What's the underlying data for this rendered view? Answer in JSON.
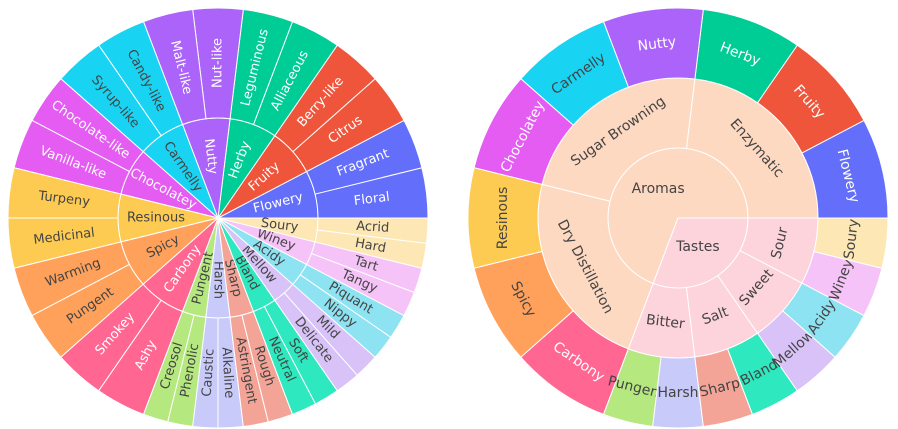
{
  "chart_data": [
    {
      "type": "sunburst",
      "children": [
        {
          "name": "Flowery",
          "color": "#636efa",
          "children": [
            {
              "name": "Floral",
              "value": 2
            },
            {
              "name": "Fragrant",
              "value": 2
            }
          ]
        },
        {
          "name": "Fruity",
          "color": "#ef553b",
          "children": [
            {
              "name": "Citrus",
              "value": 2
            },
            {
              "name": "Berry-like",
              "value": 2
            }
          ]
        },
        {
          "name": "Herby",
          "color": "#00cc96",
          "children": [
            {
              "name": "Alliaceous",
              "value": 2
            },
            {
              "name": "Leguminous",
              "value": 2
            }
          ]
        },
        {
          "name": "Nutty",
          "color": "#ab63fa",
          "children": [
            {
              "name": "Nut-like",
              "value": 2
            },
            {
              "name": "Malt-like",
              "value": 2
            }
          ]
        },
        {
          "name": "Carmelly",
          "color": "#19d3f3",
          "children": [
            {
              "name": "Candy-like",
              "value": 2
            },
            {
              "name": "Syrup-like",
              "value": 2
            }
          ]
        },
        {
          "name": "Chocolatey",
          "color": "#e45cf2",
          "children": [
            {
              "name": "Chocolate-like",
              "value": 2
            },
            {
              "name": "Vanilla-like",
              "value": 2
            }
          ]
        },
        {
          "name": "Resinous",
          "color": "#fecb52",
          "children": [
            {
              "name": "Turpeny",
              "value": 2
            },
            {
              "name": "Medicinal",
              "value": 2
            }
          ]
        },
        {
          "name": "Spicy",
          "color": "#ffa15a",
          "children": [
            {
              "name": "Warming",
              "value": 2
            },
            {
              "name": "Pungent",
              "value": 2
            }
          ]
        },
        {
          "name": "Carbony",
          "color": "#ff6692",
          "children": [
            {
              "name": "Smokey",
              "value": 2
            },
            {
              "name": "Ashy",
              "value": 2
            }
          ]
        },
        {
          "name": "Pungent",
          "color": "#b6e880",
          "children": [
            {
              "name": "Creosol",
              "value": 1
            },
            {
              "name": "Phenolic",
              "value": 1
            }
          ]
        },
        {
          "name": "Harsh",
          "color": "#c8cafa",
          "children": [
            {
              "name": "Caustic",
              "value": 1
            },
            {
              "name": "Alkaline",
              "value": 1
            }
          ]
        },
        {
          "name": "Sharp",
          "color": "#f4a397",
          "children": [
            {
              "name": "Astringent",
              "value": 1
            },
            {
              "name": "Rough",
              "value": 1
            }
          ]
        },
        {
          "name": "Bland",
          "color": "#2ee8bf",
          "children": [
            {
              "name": "Neutral",
              "value": 1
            },
            {
              "name": "Soft",
              "value": 1
            }
          ]
        },
        {
          "name": "Mellow",
          "color": "#d8c2f7",
          "children": [
            {
              "name": "Delicate",
              "value": 1
            },
            {
              "name": "Mild",
              "value": 1
            }
          ]
        },
        {
          "name": "Acidy",
          "color": "#8de3f2",
          "children": [
            {
              "name": "Nippy",
              "value": 1
            },
            {
              "name": "Piquant",
              "value": 1
            }
          ]
        },
        {
          "name": "Winey",
          "color": "#f5c3f7",
          "children": [
            {
              "name": "Tangy",
              "value": 1
            },
            {
              "name": "Tart",
              "value": 1
            }
          ]
        },
        {
          "name": "Soury",
          "color": "#fde7b4",
          "children": [
            {
              "name": "Hard",
              "value": 1
            },
            {
              "name": "Acrid",
              "value": 1
            }
          ]
        }
      ]
    },
    {
      "type": "sunburst",
      "children": [
        {
          "name": "Aromas",
          "color": "#fed9c1",
          "children": [
            {
              "name": "Enzymatic",
              "color": "#fed9c1",
              "children": [
                {
                  "name": "Flowery",
                  "color": "#636efa",
                  "value": 4
                },
                {
                  "name": "Fruity",
                  "color": "#ef553b",
                  "value": 4
                },
                {
                  "name": "Herby",
                  "color": "#00cc96",
                  "value": 4
                }
              ]
            },
            {
              "name": "Sugar Browning",
              "color": "#fed9c1",
              "children": [
                {
                  "name": "Nutty",
                  "color": "#ab63fa",
                  "value": 4
                },
                {
                  "name": "Carmelly",
                  "color": "#19d3f3",
                  "value": 4
                },
                {
                  "name": "Chocolatey",
                  "color": "#e45cf2",
                  "value": 4
                }
              ]
            },
            {
              "name": "Dry Distillation",
              "color": "#fed9c1",
              "children": [
                {
                  "name": "Resinous",
                  "color": "#fecb52",
                  "value": 4
                },
                {
                  "name": "Spicy",
                  "color": "#ffa15a",
                  "value": 4
                },
                {
                  "name": "Carbony",
                  "color": "#ff6692",
                  "value": 4
                }
              ]
            }
          ]
        },
        {
          "name": "Tastes",
          "color": "#fdd3dc",
          "children": [
            {
              "name": "Bitter",
              "color": "#fdd3dc",
              "children": [
                {
                  "name": "Pungent",
                  "color": "#b6e880",
                  "value": 2
                },
                {
                  "name": "Harsh",
                  "color": "#c8cafa",
                  "value": 2
                }
              ]
            },
            {
              "name": "Salt",
              "color": "#fdd3dc",
              "children": [
                {
                  "name": "Sharp",
                  "color": "#f4a397",
                  "value": 2
                },
                {
                  "name": "Bland",
                  "color": "#2ee8bf",
                  "value": 2
                }
              ]
            },
            {
              "name": "Sweet",
              "color": "#fdd3dc",
              "children": [
                {
                  "name": "Mellow",
                  "color": "#d8c2f7",
                  "value": 2
                },
                {
                  "name": "Acidy",
                  "color": "#8de3f2",
                  "value": 2
                }
              ]
            },
            {
              "name": "Sour",
              "color": "#fdd3dc",
              "children": [
                {
                  "name": "Winey",
                  "color": "#f5c3f7",
                  "value": 2
                },
                {
                  "name": "Soury",
                  "color": "#fde7b4",
                  "value": 2
                }
              ]
            }
          ]
        }
      ]
    }
  ]
}
